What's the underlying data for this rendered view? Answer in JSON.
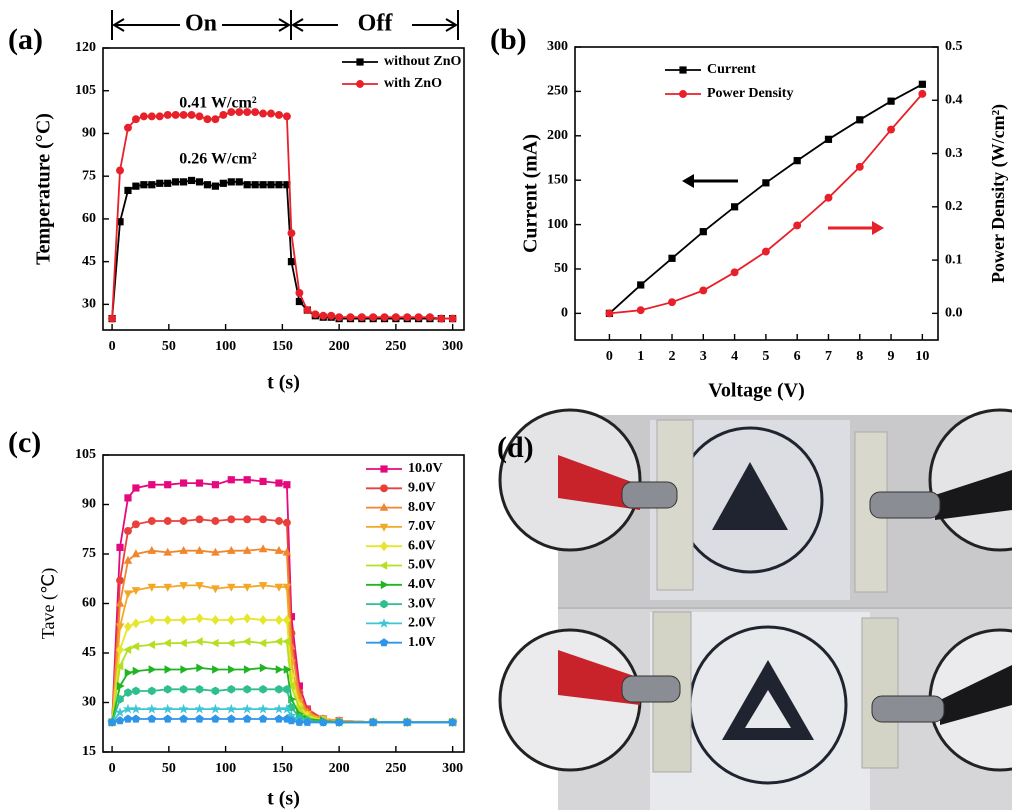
{
  "chart_data": [
    {
      "type": "line",
      "panel_label": "(a)",
      "xlabel": "t (s)",
      "ylabel": "Temperature (°C)",
      "phase_labels": [
        "On",
        "Off"
      ],
      "annotations": [
        "0.41 W/cm²",
        "0.26 W/cm²"
      ],
      "x": [
        0,
        7,
        14,
        21,
        28,
        35,
        42,
        49,
        56,
        63,
        70,
        77,
        84,
        91,
        98,
        105,
        112,
        119,
        126,
        133,
        140,
        147,
        154,
        158,
        165,
        172,
        179,
        186,
        193,
        200,
        210,
        220,
        230,
        240,
        250,
        260,
        270,
        280,
        290,
        300
      ],
      "series": [
        {
          "name": "without ZnO",
          "color": "#000000",
          "marker": "square",
          "values": [
            25,
            59,
            70,
            71.5,
            72,
            72,
            72.5,
            72.5,
            73,
            73,
            73.5,
            73,
            72,
            71.5,
            72.5,
            73,
            73,
            72,
            72,
            72,
            72,
            72,
            72,
            45,
            31,
            28,
            26,
            25.5,
            25.5,
            25,
            25,
            25,
            25,
            25,
            25,
            25,
            25,
            25,
            25,
            25
          ]
        },
        {
          "name": "with ZnO",
          "color": "#e8202a",
          "marker": "circle",
          "values": [
            25,
            77,
            92,
            95,
            96,
            96,
            96,
            96.5,
            96.5,
            96.5,
            96.5,
            96,
            95,
            95,
            96.5,
            97.5,
            97.5,
            97.5,
            97.5,
            97,
            97,
            96.5,
            96,
            55,
            34,
            28,
            26.5,
            26,
            26,
            25.5,
            25.5,
            25.5,
            25.5,
            25.5,
            25.5,
            25.5,
            25.5,
            25.5,
            25,
            25
          ]
        }
      ],
      "xlim": [
        -8,
        310
      ],
      "xticks": [
        0,
        50,
        100,
        150,
        200,
        250,
        300
      ],
      "ylim": [
        21,
        120
      ],
      "yticks": [
        30,
        45,
        60,
        75,
        90,
        105,
        120
      ],
      "legend": "upper right"
    },
    {
      "type": "line",
      "panel_label": "(b)",
      "xlabel": "Voltage (V)",
      "ylabel": "Current (mA)",
      "y2label": "Power Density (W/cm²)",
      "x": [
        0,
        1,
        2,
        3,
        4,
        5,
        6,
        7,
        8,
        9,
        10
      ],
      "series": [
        {
          "name": "Current",
          "color": "#000000",
          "marker": "square",
          "values": [
            0,
            32,
            62,
            92,
            120,
            147,
            172,
            196,
            218,
            239,
            258
          ]
        },
        {
          "name": "Power Density",
          "color": "#e8202a",
          "marker": "circle",
          "axis": "y2",
          "values": [
            0,
            0.006,
            0.021,
            0.043,
            0.077,
            0.116,
            0.165,
            0.217,
            0.275,
            0.345,
            0.412
          ]
        }
      ],
      "xlim": [
        -1.1,
        10.5
      ],
      "xticks": [
        0,
        1,
        2,
        3,
        4,
        5,
        6,
        7,
        8,
        9,
        10
      ],
      "ylim": [
        -30,
        300
      ],
      "yticks": [
        0,
        50,
        100,
        150,
        200,
        250,
        300
      ],
      "y2lim": [
        -0.05,
        0.5
      ],
      "y2ticks": [
        {
          "value": 0,
          "label": "0.0"
        },
        0.1,
        0.2,
        0.3,
        0.4,
        0.5
      ],
      "legend": "upper left"
    },
    {
      "type": "line",
      "panel_label": "(c)",
      "xlabel": "t (s)",
      "ylabel": "Tave (℃)",
      "x": [
        0,
        7,
        14,
        21,
        35,
        49,
        63,
        77,
        91,
        105,
        119,
        133,
        147,
        154,
        158,
        165,
        172,
        186,
        200,
        230,
        260,
        300
      ],
      "series": [
        {
          "name": "10.0V",
          "color": "#e5097f",
          "marker": "square",
          "values": [
            24,
            77,
            92,
            95,
            96,
            96,
            96.5,
            96.5,
            96,
            97.5,
            97.5,
            97,
            96.5,
            96,
            56,
            35,
            28,
            25,
            24.5,
            24,
            24,
            24
          ]
        },
        {
          "name": "9.0V",
          "color": "#e8413c",
          "marker": "circle",
          "values": [
            24,
            67,
            82,
            84,
            85,
            85,
            85,
            85.5,
            85,
            85.5,
            85.5,
            85.5,
            85,
            84.5,
            51,
            33,
            28,
            25,
            24.5,
            24,
            24,
            24
          ]
        },
        {
          "name": "8.0V",
          "color": "#f0862e",
          "marker": "triangle-up",
          "values": [
            24,
            60,
            73,
            75,
            76,
            75.5,
            76,
            76,
            75.5,
            76,
            76,
            76.5,
            76,
            75.5,
            47,
            32,
            27,
            25,
            24.5,
            24,
            24,
            24
          ]
        },
        {
          "name": "7.0V",
          "color": "#f2a826",
          "marker": "triangle-down",
          "values": [
            24,
            53,
            63,
            64,
            65,
            65,
            65.5,
            65.5,
            64.5,
            65,
            65,
            65.5,
            65,
            65,
            42,
            30,
            26.5,
            25,
            24.5,
            24,
            24,
            24
          ]
        },
        {
          "name": "6.0V",
          "color": "#e6e62a",
          "marker": "diamond",
          "values": [
            24,
            46,
            53,
            54,
            55,
            55,
            55,
            55.5,
            55,
            55,
            55.5,
            55,
            55,
            55,
            38,
            29,
            26,
            24.5,
            24,
            24,
            24,
            24
          ]
        },
        {
          "name": "5.0V",
          "color": "#b4e021",
          "marker": "triangle-left",
          "values": [
            24,
            41,
            46,
            47,
            47.5,
            48,
            48,
            48.5,
            48,
            48,
            48.5,
            48,
            48.5,
            48.5,
            35,
            28,
            25.5,
            24.5,
            24,
            24,
            24,
            24
          ]
        },
        {
          "name": "4.0V",
          "color": "#22b422",
          "marker": "triangle-right",
          "values": [
            24,
            35,
            39,
            39.5,
            40,
            40,
            40,
            40.5,
            40,
            40,
            40,
            40.5,
            40,
            40,
            31,
            26.5,
            25,
            24.5,
            24,
            24,
            24,
            24
          ]
        },
        {
          "name": "3.0V",
          "color": "#2fbf8f",
          "marker": "hexagon",
          "values": [
            24,
            31,
            33,
            33.5,
            33.5,
            34,
            34,
            34,
            33.5,
            34,
            34,
            34,
            34,
            34,
            28.5,
            25.5,
            24.5,
            24,
            24,
            24,
            24,
            24
          ]
        },
        {
          "name": "2.0V",
          "color": "#3cc6d6",
          "marker": "star",
          "values": [
            24,
            27,
            28,
            28,
            28,
            28,
            28,
            28,
            28,
            28,
            28,
            28,
            28,
            28,
            26,
            24.5,
            24,
            24,
            24,
            24,
            24,
            24
          ]
        },
        {
          "name": "1.0V",
          "color": "#2e95e8",
          "marker": "pentagon",
          "values": [
            24,
            24.5,
            25,
            25,
            25,
            25,
            25,
            25,
            25,
            25,
            25,
            25,
            25,
            25,
            24.5,
            24,
            24,
            24,
            24,
            24,
            24,
            24
          ]
        }
      ],
      "xlim": [
        -8,
        310
      ],
      "xticks": [
        0,
        50,
        100,
        150,
        200,
        250,
        300
      ],
      "ylim": [
        15,
        105
      ],
      "yticks": [
        15,
        30,
        45,
        60,
        75,
        90,
        105
      ],
      "legend": "right"
    }
  ],
  "photo": {
    "panel_label": "(d)"
  }
}
